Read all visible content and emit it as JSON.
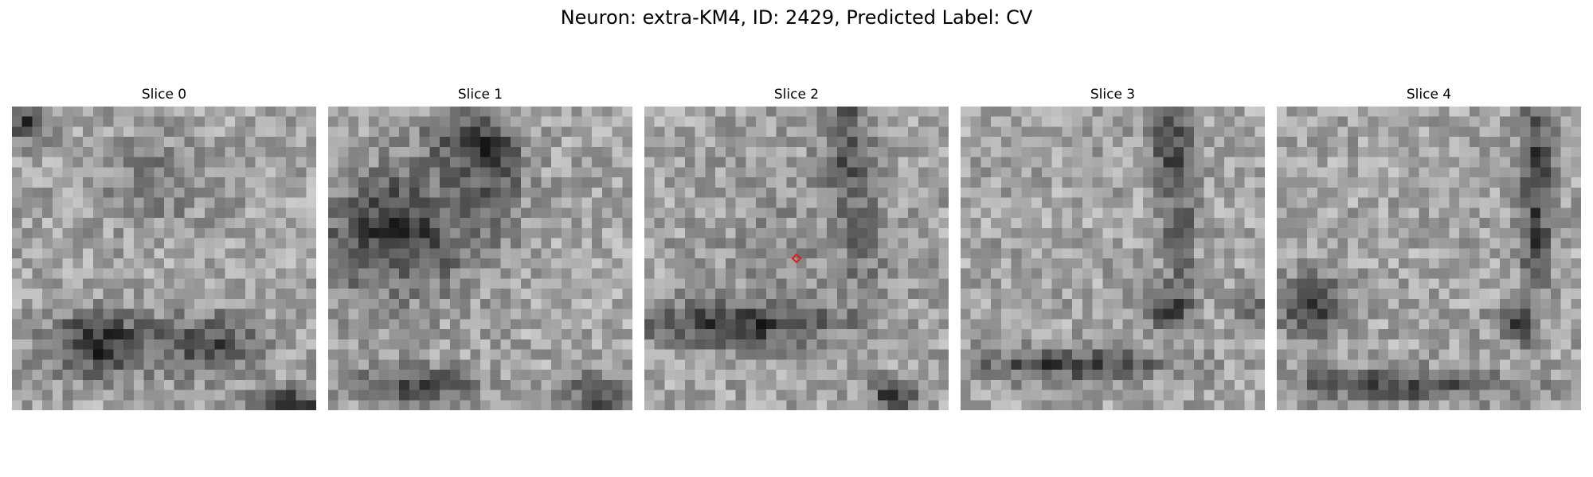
{
  "figure": {
    "title": "Neuron: extra-KM4, ID: 2429, Predicted Label: CV"
  },
  "slices": [
    {
      "title": "Slice 0",
      "has_marker": false
    },
    {
      "title": "Slice 1",
      "has_marker": false
    },
    {
      "title": "Slice 2",
      "has_marker": true
    },
    {
      "title": "Slice 3",
      "has_marker": false
    },
    {
      "title": "Slice 4",
      "has_marker": false
    }
  ],
  "colors": {
    "marker": "#e31a1c",
    "background": "#ffffff",
    "colormap": "grayscale"
  }
}
